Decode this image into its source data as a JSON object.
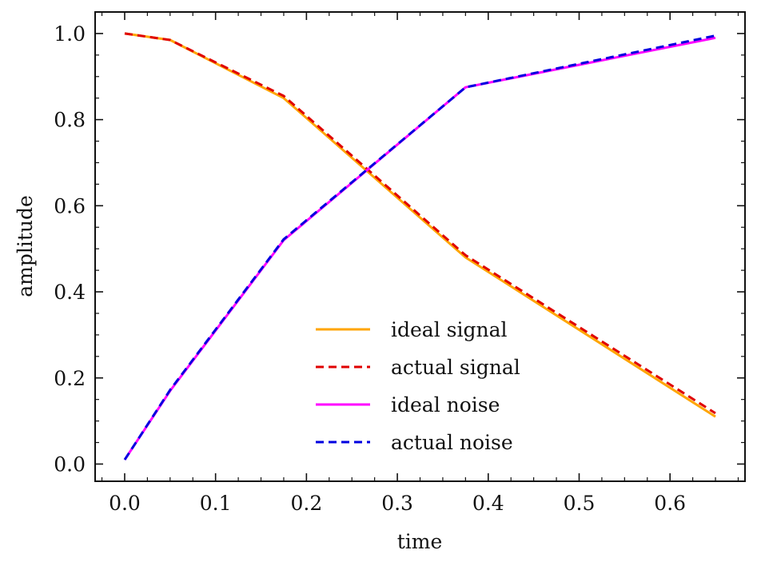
{
  "chart_data": {
    "type": "line",
    "title": "",
    "xlabel": "time",
    "ylabel": "amplitude",
    "xlim": [
      -0.0325,
      0.6825
    ],
    "ylim": [
      -0.04,
      1.05
    ],
    "xticks": [
      0.0,
      0.1,
      0.2,
      0.3,
      0.4,
      0.5,
      0.6
    ],
    "xtick_labels": [
      "0.0",
      "0.1",
      "0.2",
      "0.3",
      "0.4",
      "0.5",
      "0.6"
    ],
    "yticks": [
      0.0,
      0.2,
      0.4,
      0.6,
      0.8,
      1.0
    ],
    "ytick_labels": [
      "0.0",
      "0.2",
      "0.4",
      "0.6",
      "0.8",
      "1.0"
    ],
    "grid": false,
    "legend_position": "lower-center",
    "series": [
      {
        "name": "ideal signal",
        "color": "#FFA500",
        "dash": "solid",
        "x": [
          0.0,
          0.05,
          0.175,
          0.375,
          0.65
        ],
        "y": [
          1.0,
          0.985,
          0.85,
          0.48,
          0.11
        ]
      },
      {
        "name": "actual signal",
        "color": "#E00000",
        "dash": "dashed",
        "x": [
          0.0,
          0.05,
          0.175,
          0.375,
          0.65
        ],
        "y": [
          1.0,
          0.985,
          0.855,
          0.485,
          0.118
        ]
      },
      {
        "name": "ideal noise",
        "color": "#FF00FF",
        "dash": "solid",
        "x": [
          0.0,
          0.05,
          0.175,
          0.375,
          0.65
        ],
        "y": [
          0.01,
          0.17,
          0.52,
          0.875,
          0.99
        ]
      },
      {
        "name": "actual noise",
        "color": "#0000E0",
        "dash": "dashed",
        "x": [
          0.0,
          0.05,
          0.175,
          0.375,
          0.65
        ],
        "y": [
          0.01,
          0.172,
          0.522,
          0.875,
          0.995
        ]
      }
    ]
  }
}
